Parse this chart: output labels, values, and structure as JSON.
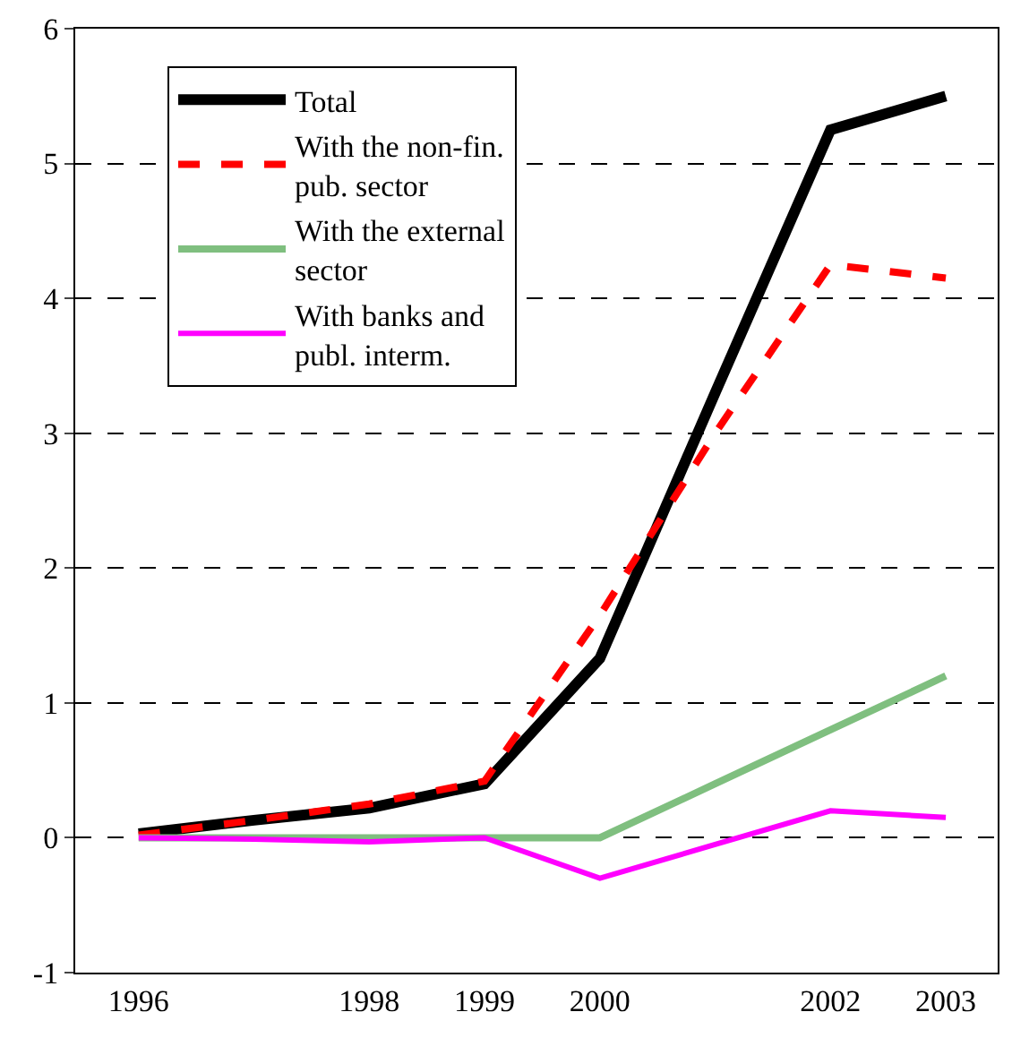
{
  "chart_data": {
    "type": "line",
    "x": [
      1996,
      1997,
      1998,
      1999,
      2000,
      2001,
      2002,
      2003
    ],
    "xlim": [
      1995.45,
      2003.45
    ],
    "xticks": [
      1996,
      1998,
      1999,
      2000,
      2002,
      2003
    ],
    "ylim": [
      -1,
      6
    ],
    "yticks": [
      -1,
      0,
      1,
      2,
      3,
      4,
      5,
      6
    ],
    "grid": "y",
    "legend": "top left",
    "line_style": "solid",
    "series": [
      {
        "name": "Total",
        "color": "#000000",
        "values": [
          0.03,
          0.13,
          0.22,
          0.4,
          1.33,
          3.3,
          5.25,
          5.5
        ]
      },
      {
        "name": "With the non-fin.\npub. sector",
        "color": "#ff0000",
        "line_style": "dashed",
        "values": [
          0.02,
          0.13,
          0.25,
          0.42,
          1.65,
          3.0,
          4.25,
          4.15
        ]
      },
      {
        "name": "With the external\nsector",
        "color": "#7fbf7f",
        "values": [
          0,
          0,
          0,
          0,
          0,
          0.4,
          0.8,
          1.2
        ]
      },
      {
        "name": "With banks and\npubl. interm.",
        "color": "#ff00ff",
        "values": [
          0,
          -0.01,
          -0.03,
          0.0,
          -0.3,
          -0.05,
          0.2,
          0.15
        ]
      }
    ]
  }
}
